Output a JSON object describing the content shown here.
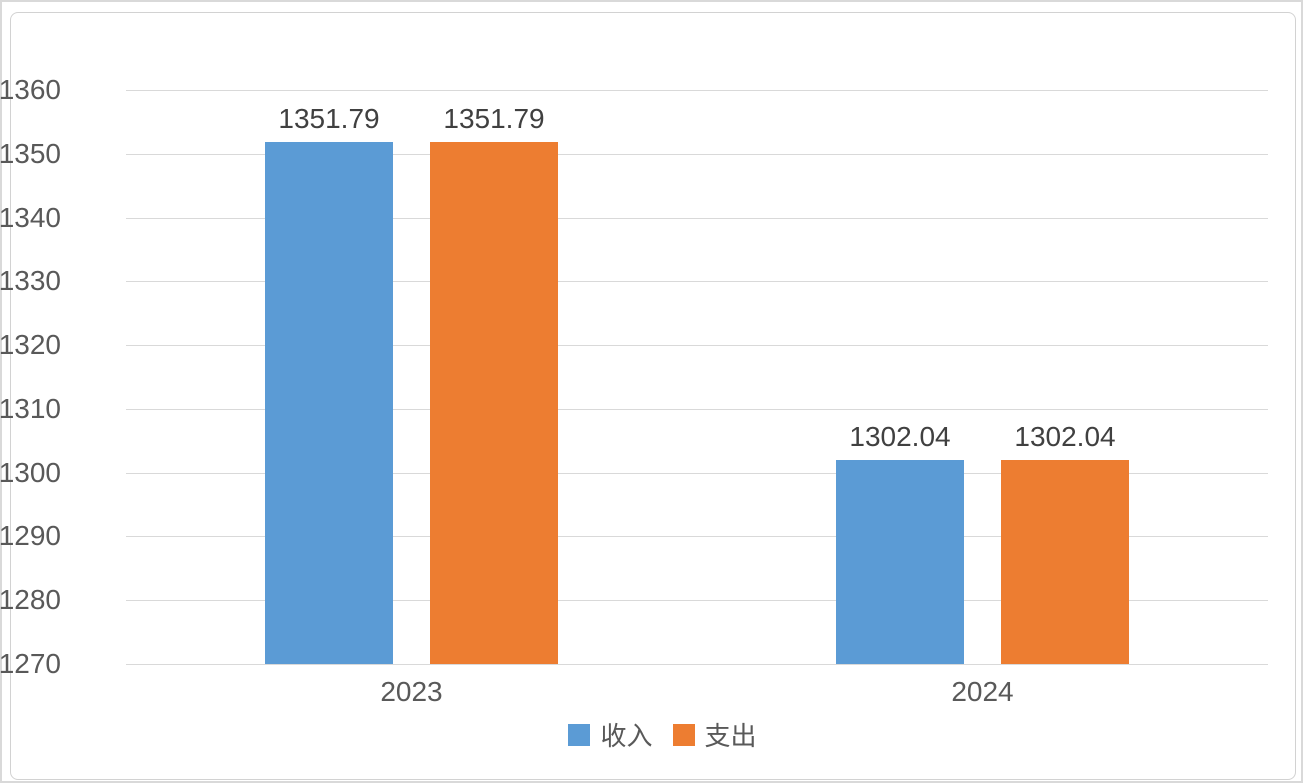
{
  "chart_data": {
    "type": "bar",
    "title": "",
    "categories": [
      "2023",
      "2024"
    ],
    "series": [
      {
        "name": "收入",
        "color": "#5B9BD5",
        "values": [
          1351.79,
          1302.04
        ],
        "labels": [
          "1351.79",
          "1302.04"
        ]
      },
      {
        "name": "支出",
        "color": "#ED7D31",
        "values": [
          1351.79,
          1302.04
        ],
        "labels": [
          "1351.79",
          "1302.04"
        ]
      }
    ],
    "y_axis": {
      "min": 1270,
      "max": 1360,
      "step": 10,
      "ticks": [
        "1360",
        "1350",
        "1340",
        "1330",
        "1320",
        "1310",
        "1300",
        "1290",
        "1280",
        "1270"
      ]
    },
    "x_axis": {
      "labels": [
        "2023",
        "2024"
      ]
    },
    "grid": true,
    "data_labels_shown": true,
    "legend_position": "bottom",
    "colors": {
      "series_income": "#5B9BD5",
      "series_expense": "#ED7D31",
      "gridline": "#d9d9d9",
      "axis_text": "#595959",
      "data_label_text": "#404040",
      "chart_border": "#d2d2d2"
    }
  },
  "legend": {
    "items": [
      {
        "label": "收入",
        "color": "#5B9BD5"
      },
      {
        "label": "支出",
        "color": "#ED7D31"
      }
    ]
  }
}
